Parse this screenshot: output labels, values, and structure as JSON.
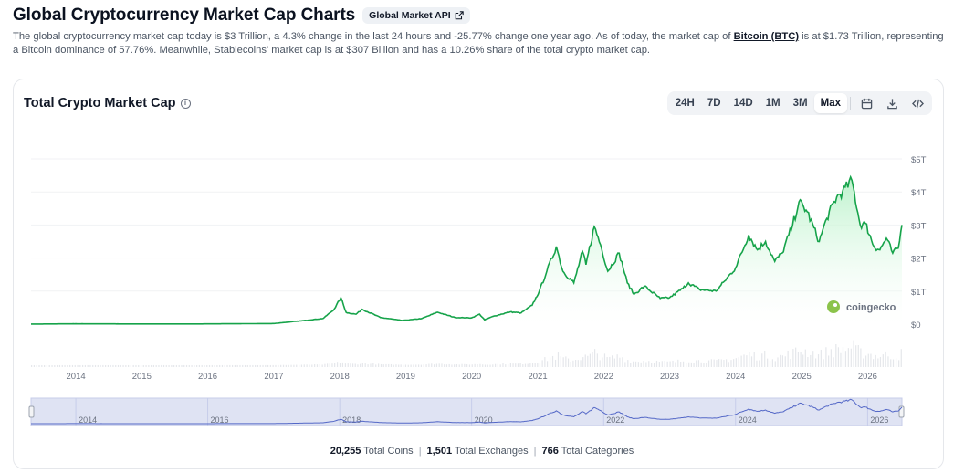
{
  "header": {
    "title": "Global Cryptocurrency Market Cap Charts",
    "api_button": "Global Market API"
  },
  "description": {
    "part1": "The global cryptocurrency market cap today is $3 Trillion, a 4.3% change in the last 24 hours and -25.77% change one year ago. As of today, the market cap of ",
    "btc_link": "Bitcoin (BTC)",
    "part2": " is at $1.73 Trillion, representing a Bitcoin dominance of 57.76%. Meanwhile, Stablecoins' market cap is at $307 Billion and has a 10.26% share of the total crypto market cap."
  },
  "card": {
    "title": "Total Crypto Market Cap",
    "ranges": [
      "24H",
      "7D",
      "14D",
      "1M",
      "3M",
      "Max"
    ],
    "active_range": "Max",
    "icons": [
      "calendar-icon",
      "download-icon",
      "embed-code-icon"
    ]
  },
  "watermark": "coingecko",
  "colors": {
    "line": "#16a34a",
    "fill_top": "#bbf7d0",
    "volume": "#e5e7eb",
    "navigator_bg": "#dfe3f3",
    "navigator_line": "#5468c7"
  },
  "footer": {
    "coins_value": "20,255",
    "coins_label": "Total Coins",
    "exchanges_value": "1,501",
    "exchanges_label": "Total Exchanges",
    "categories_value": "766",
    "categories_label": "Total Categories"
  },
  "chart_data": {
    "type": "area",
    "title": "Total Crypto Market Cap",
    "y_unit": "trillion USD",
    "ylim": [
      0,
      5
    ],
    "y_ticks": [
      "$0",
      "$1T",
      "$2T",
      "$3T",
      "$4T",
      "$5T"
    ],
    "x_ticks": [
      "2014",
      "2015",
      "2016",
      "2017",
      "2018",
      "2019",
      "2020",
      "2021",
      "2022",
      "2023",
      "2024",
      "2025",
      "2026"
    ],
    "navigator_ticks": [
      "2014",
      "2016",
      "2018",
      "2020",
      "2022",
      "2024",
      "2026"
    ],
    "grid": true,
    "series": [
      {
        "x": [
          "2013-04-28",
          "2014-01-01",
          "2015-01-01",
          "2016-01-01",
          "2017-01-01",
          "2017-06-01",
          "2017-10-01",
          "2017-12-01",
          "2018-01-07",
          "2018-02-06",
          "2018-04-01",
          "2018-05-05",
          "2018-08-15",
          "2018-11-20",
          "2018-12-15",
          "2019-04-01",
          "2019-06-26",
          "2019-10-01",
          "2020-01-01",
          "2020-02-14",
          "2020-03-13",
          "2020-05-01",
          "2020-08-01",
          "2020-10-01",
          "2020-12-01",
          "2021-01-10",
          "2021-02-20",
          "2021-04-14",
          "2021-05-20",
          "2021-07-20",
          "2021-09-06",
          "2021-09-25",
          "2021-11-10",
          "2021-12-15",
          "2022-01-24",
          "2022-03-28",
          "2022-05-12",
          "2022-06-18",
          "2022-08-14",
          "2022-11-10",
          "2023-01-01",
          "2023-03-15",
          "2023-04-15",
          "2023-06-15",
          "2023-09-15",
          "2023-11-01",
          "2024-01-01",
          "2024-03-14",
          "2024-05-01",
          "2024-06-15",
          "2024-08-05",
          "2024-09-15",
          "2024-11-12",
          "2024-12-17",
          "2025-02-01",
          "2025-04-08",
          "2025-05-20",
          "2025-07-14",
          "2025-08-15",
          "2025-10-06",
          "2025-11-21",
          "2025-12-20",
          "2026-02-05",
          "2026-03-10",
          "2026-04-15",
          "2026-05-20",
          "2026-06-20",
          "2026-07-10"
        ],
        "y": [
          0.002,
          0.01,
          0.005,
          0.007,
          0.018,
          0.1,
          0.17,
          0.45,
          0.8,
          0.35,
          0.3,
          0.45,
          0.2,
          0.13,
          0.11,
          0.17,
          0.36,
          0.2,
          0.19,
          0.3,
          0.13,
          0.24,
          0.37,
          0.34,
          0.57,
          1.0,
          1.6,
          2.35,
          1.6,
          1.25,
          2.2,
          1.8,
          2.95,
          2.4,
          1.6,
          2.15,
          1.25,
          0.9,
          1.15,
          0.78,
          0.8,
          1.08,
          1.25,
          1.05,
          1.0,
          1.3,
          1.7,
          2.7,
          2.25,
          2.5,
          1.9,
          2.15,
          3.0,
          3.7,
          3.4,
          2.5,
          3.2,
          3.85,
          4.0,
          4.35,
          3.0,
          3.05,
          2.35,
          2.25,
          2.6,
          2.15,
          2.3,
          3.0
        ]
      }
    ]
  }
}
